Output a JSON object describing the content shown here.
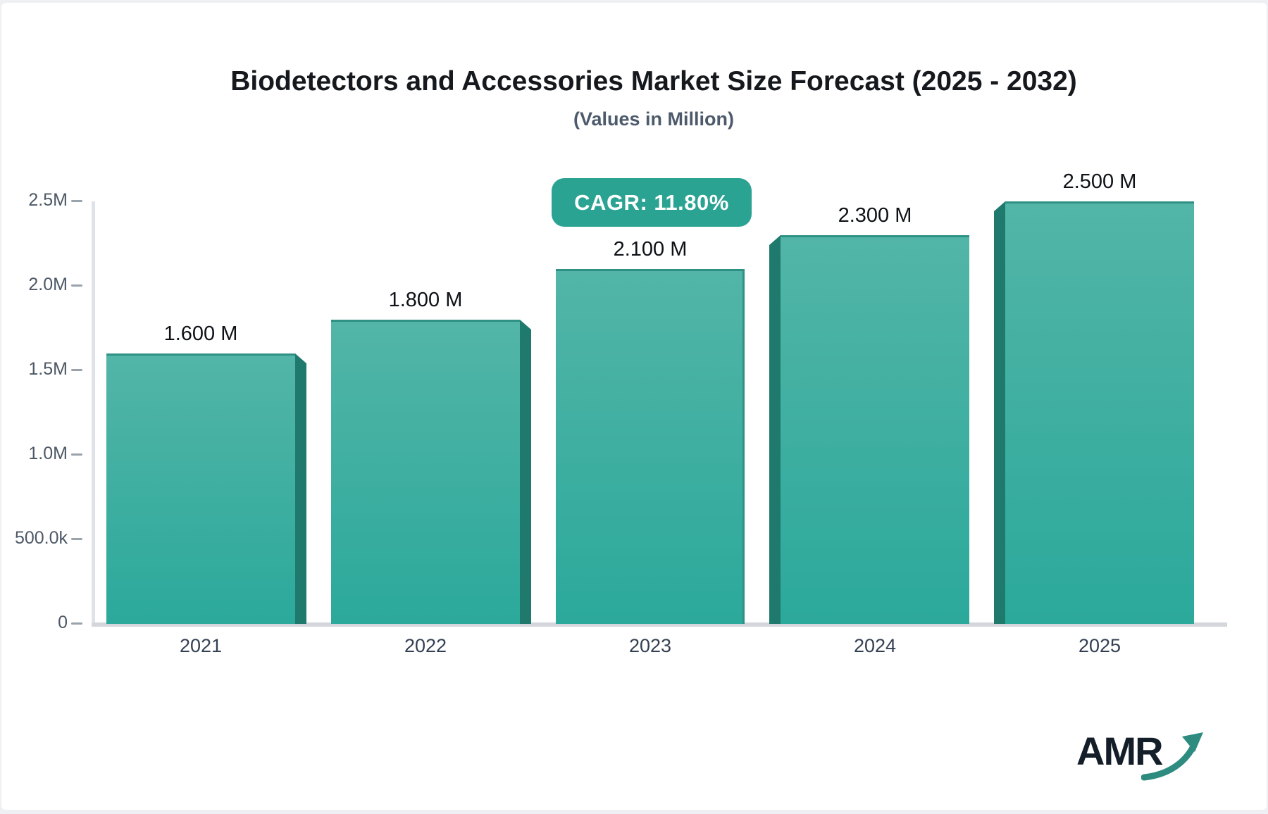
{
  "header": {
    "title": "Biodetectors and Accessories Market Size Forecast (2025 - 2032)",
    "subtitle": "(Values in Million)"
  },
  "badge": {
    "label": "CAGR: 11.80%"
  },
  "chart_data": {
    "type": "bar",
    "title": "Biodetectors and Accessories Market Size Forecast (2025 - 2032)",
    "subtitle": "(Values in Million)",
    "unit": "Million",
    "categories": [
      "2021",
      "2022",
      "2023",
      "2024",
      "2025"
    ],
    "values": [
      1.6,
      1.8,
      2.1,
      2.3,
      2.5
    ],
    "value_labels": [
      "1.600 M",
      "1.800 M",
      "2.100 M",
      "2.300 M",
      "2.500 M"
    ],
    "annotation": "CAGR: 11.80%",
    "xlabel": "",
    "ylabel": "",
    "ylim": [
      0,
      2.5
    ],
    "ytick_values": [
      0,
      0.5,
      1.0,
      1.5,
      2.0,
      2.5
    ],
    "ytick_labels": [
      "0",
      "500.0k",
      "1.0M",
      "1.5M",
      "2.0M",
      "2.5M"
    ],
    "grid": false,
    "legend": false,
    "colors": {
      "bar_face_top": "#52b5a7",
      "bar_face_bottom": "#2ba99b",
      "bar_side": "#1f7a6d",
      "bar_edge": "#2f9184",
      "badge_bg": "#2aa392",
      "badge_text": "#ffffff",
      "axis_line": "#dfe2e7",
      "baseline": "#d3d7dc",
      "tick": "#9aa2ac",
      "title_text": "#15181c",
      "subtitle_text": "#4d5a6b",
      "ytick_text": "#4d5866",
      "xtick_text": "#333f52",
      "value_label_text": "#0e1116",
      "logo_text": "#141e29",
      "logo_arrow": "#2e8b80"
    }
  },
  "logo": {
    "text": "AMR"
  }
}
